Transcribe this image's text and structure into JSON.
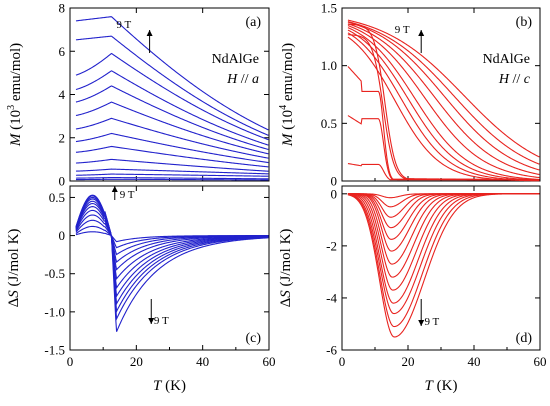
{
  "chart_data": [
    {
      "panel": "(a)",
      "type": "line",
      "material": "NdAlGe",
      "field_dir": "H // a",
      "arrow_label": "9 T",
      "color": "#2222cc",
      "xlabel": "",
      "ylabel": "M (10^3 emu/mol)",
      "ylabel_base": "M",
      "ylabel_unit_pre": "(10",
      "ylabel_exp": "3",
      "ylabel_unit_post": " emu/mol)",
      "xlim": [
        0,
        60
      ],
      "ylim": [
        0,
        8
      ],
      "xticks": [
        0,
        20,
        40,
        60
      ],
      "yticks": [
        0,
        2,
        4,
        6,
        8
      ],
      "xtick_labels_shown": false,
      "model": "antiferromagnet_M",
      "curves": [
        {
          "field_T": 0.25,
          "peak": 0.08,
          "tail60": 0.05
        },
        {
          "field_T": 0.5,
          "peak": 0.16,
          "tail60": 0.1
        },
        {
          "field_T": 1,
          "peak": 0.32,
          "tail60": 0.22
        },
        {
          "field_T": 1.5,
          "peak": 0.55,
          "tail60": 0.33
        },
        {
          "field_T": 2,
          "peak": 1.0,
          "tail60": 0.45
        },
        {
          "field_T": 3,
          "peak": 1.6,
          "tail60": 0.65
        },
        {
          "field_T": 4,
          "peak": 2.2,
          "tail60": 0.85
        },
        {
          "field_T": 5,
          "peak": 2.9,
          "tail60": 1.05
        },
        {
          "field_T": 6,
          "peak": 3.65,
          "tail60": 1.25
        },
        {
          "field_T": 7,
          "peak": 4.4,
          "tail60": 1.45
        },
        {
          "field_T": 7.5,
          "peak": 5.1,
          "tail60": 1.65
        },
        {
          "field_T": 8,
          "peak": 5.9,
          "tail60": 1.9
        },
        {
          "field_T": 8.5,
          "peak": 6.7,
          "tail60": 2.1
        },
        {
          "field_T": 9,
          "peak": 7.6,
          "tail60": 2.35
        }
      ]
    },
    {
      "panel": "(b)",
      "type": "line",
      "material": "NdAlGe",
      "field_dir": "H // c",
      "arrow_label": "9 T",
      "color": "#e8231f",
      "xlabel": "",
      "ylabel": "M (10^4 emu/mol)",
      "ylabel_base": "M",
      "ylabel_unit_pre": "(10",
      "ylabel_exp": "4",
      "ylabel_unit_post": " emu/mol)",
      "xlim": [
        0,
        60
      ],
      "ylim": [
        0,
        1.5
      ],
      "xticks": [
        0,
        20,
        40,
        60
      ],
      "yticks": [
        0,
        0.5,
        1.0,
        1.5
      ],
      "ytick_labels": [
        "0",
        "0.5",
        "1.0",
        "1.5"
      ],
      "xtick_labels_shown": false,
      "model": "ferromagnet_M",
      "curves": [
        {
          "field_T": 0.25,
          "low_T": 0.16,
          "kind": "step"
        },
        {
          "field_T": 0.5,
          "low_T": 0.6,
          "kind": "step"
        },
        {
          "field_T": 1,
          "low_T": 1.05,
          "kind": "step"
        },
        {
          "field_T": 1.5,
          "low_T": 1.27,
          "kind": "step"
        },
        {
          "field_T": 2,
          "low_T": 1.36,
          "kind": "step"
        },
        {
          "field_T": 2.5,
          "low_T": 1.4,
          "kind": "smooth",
          "half_T": 16
        },
        {
          "field_T": 3,
          "low_T": 1.42,
          "kind": "smooth",
          "half_T": 18
        },
        {
          "field_T": 3.5,
          "low_T": 1.43,
          "kind": "smooth",
          "half_T": 20
        },
        {
          "field_T": 4,
          "low_T": 1.44,
          "kind": "smooth",
          "half_T": 22
        },
        {
          "field_T": 5,
          "low_T": 1.45,
          "kind": "smooth",
          "half_T": 25
        },
        {
          "field_T": 6,
          "low_T": 1.46,
          "kind": "smooth",
          "half_T": 28
        },
        {
          "field_T": 7,
          "low_T": 1.47,
          "kind": "smooth",
          "half_T": 31
        },
        {
          "field_T": 8,
          "low_T": 1.47,
          "kind": "smooth",
          "half_T": 34
        },
        {
          "field_T": 9,
          "low_T": 1.48,
          "kind": "smooth",
          "half_T": 37
        }
      ]
    },
    {
      "panel": "(c)",
      "type": "line",
      "arrow_up_label": "9 T",
      "arrow_down_label": "9 T",
      "color": "#2222cc",
      "xlabel": "T (K)",
      "xlabel_var": "T",
      "xlabel_unit": " (K)",
      "ylabel": "ΔS (J/mol K)",
      "ylabel_var": "ΔS",
      "ylabel_unit": " (J/mol K)",
      "xlim": [
        0,
        60
      ],
      "ylim": [
        -1.5,
        0.65
      ],
      "xticks": [
        0,
        20,
        40,
        60
      ],
      "yticks": [
        -1.5,
        -1.0,
        -0.5,
        0,
        0.5
      ],
      "ytick_labels": [
        "-1.5",
        "-1.0",
        "-0.5",
        "0",
        "0.5"
      ],
      "model": "antiferromagnet_dS",
      "curves": [
        {
          "field_T": 1,
          "pos": 0.05,
          "neg": -0.08
        },
        {
          "field_T": 2,
          "pos": 0.12,
          "neg": -0.16
        },
        {
          "field_T": 3,
          "pos": 0.2,
          "neg": -0.25
        },
        {
          "field_T": 4,
          "pos": 0.27,
          "neg": -0.35
        },
        {
          "field_T": 5,
          "pos": 0.33,
          "neg": -0.45
        },
        {
          "field_T": 6,
          "pos": 0.38,
          "neg": -0.57
        },
        {
          "field_T": 6.5,
          "pos": 0.42,
          "neg": -0.69
        },
        {
          "field_T": 7,
          "pos": 0.45,
          "neg": -0.8
        },
        {
          "field_T": 7.5,
          "pos": 0.48,
          "neg": -0.9
        },
        {
          "field_T": 8,
          "pos": 0.5,
          "neg": -1.0
        },
        {
          "field_T": 8.5,
          "pos": 0.52,
          "neg": -1.1
        },
        {
          "field_T": 9,
          "pos": 0.53,
          "neg": -1.27
        }
      ]
    },
    {
      "panel": "(d)",
      "type": "line",
      "arrow_label": "9 T",
      "color": "#e8231f",
      "xlabel": "T (K)",
      "xlabel_var": "T",
      "xlabel_unit": " (K)",
      "ylabel": "ΔS (J/mol K)",
      "ylabel_var": "ΔS",
      "ylabel_unit": " (J/mol K)",
      "xlim": [
        0,
        60
      ],
      "ylim": [
        -6,
        0.3
      ],
      "xticks": [
        0,
        20,
        40,
        60
      ],
      "yticks": [
        -6,
        -4,
        -2,
        0
      ],
      "model": "ferromagnet_dS",
      "curves": [
        {
          "field_T": 0.5,
          "min": -0.15,
          "width": 3
        },
        {
          "field_T": 1,
          "min": -0.5,
          "width": 3.5
        },
        {
          "field_T": 1.5,
          "min": -0.9,
          "width": 4
        },
        {
          "field_T": 2,
          "min": -1.3,
          "width": 4.5
        },
        {
          "field_T": 2.5,
          "min": -1.75,
          "width": 5
        },
        {
          "field_T": 3,
          "min": -2.2,
          "width": 5.5
        },
        {
          "field_T": 4,
          "min": -2.7,
          "width": 6
        },
        {
          "field_T": 5,
          "min": -3.2,
          "width": 6.5
        },
        {
          "field_T": 6,
          "min": -3.7,
          "width": 7
        },
        {
          "field_T": 7,
          "min": -4.2,
          "width": 7.5
        },
        {
          "field_T": 8,
          "min": -4.6,
          "width": 8
        },
        {
          "field_T": 8.5,
          "min": -5.1,
          "width": 8.5
        },
        {
          "field_T": 9,
          "min": -5.5,
          "width": 9
        }
      ]
    }
  ]
}
